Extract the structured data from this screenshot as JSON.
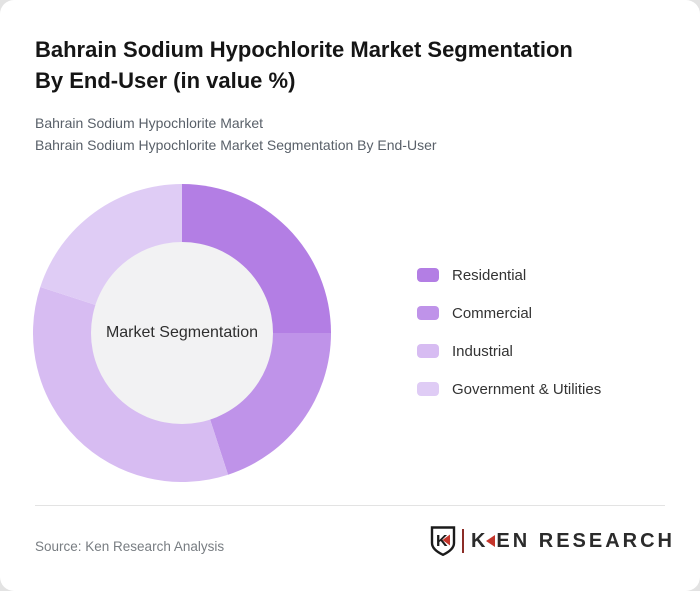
{
  "page": {
    "background_color": "#e3e3e3",
    "card_color": "#ffffff"
  },
  "header": {
    "title_line1": "Bahrain Sodium Hypochlorite Market Segmentation",
    "title_line2": "By End-User (in value %)",
    "subtitle_line1": "Bahrain Sodium Hypochlorite Market",
    "subtitle_line2": "Bahrain Sodium Hypochlorite Market Segmentation By End-User"
  },
  "chart_data": {
    "type": "pie",
    "variant": "donut",
    "title": "Bahrain Sodium Hypochlorite Market Segmentation By End-User (in value %)",
    "categories": [
      "Residential",
      "Commercial",
      "Industrial",
      "Government & Utilities"
    ],
    "values": [
      25,
      20,
      35,
      20
    ],
    "unit": "value %",
    "colors": [
      "#B37EE4",
      "#BF93E9",
      "#D7BCF2",
      "#DFCCF5"
    ],
    "start_angle_deg": 0,
    "direction": "clockwise",
    "legend_position": "right",
    "center_label": "Market Segmentation",
    "inner_hole_color": "#F2F2F3",
    "outer_radius_px": 149,
    "inner_radius_px": 91
  },
  "footer": {
    "source_text": "Source: Ken Research Analysis",
    "logo": {
      "shield_letter": "K",
      "text_k": "K",
      "text_rest": "EN RESEARCH",
      "accent_red": "#C4352B",
      "text_color": "#2B2B2B"
    }
  }
}
